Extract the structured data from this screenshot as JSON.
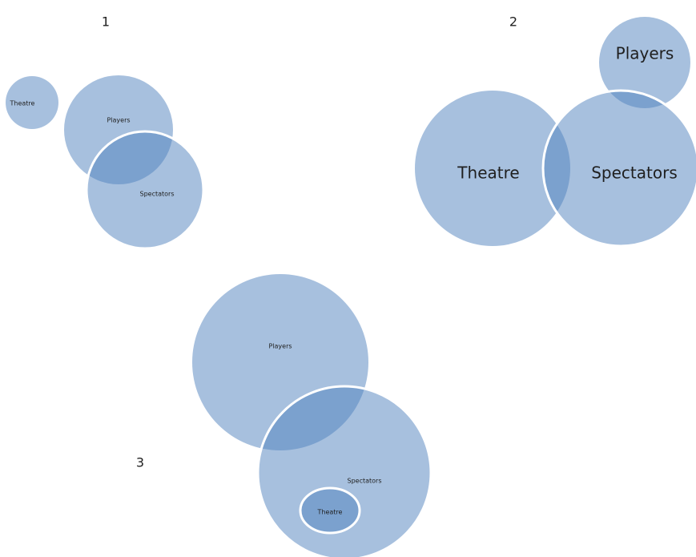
{
  "diagrams": [
    {
      "number": "1",
      "circles": [
        {
          "label": "Theatre"
        },
        {
          "label": "Players"
        },
        {
          "label": "Spectators"
        }
      ]
    },
    {
      "number": "2",
      "circles": [
        {
          "label": "Players"
        },
        {
          "label": "Theatre"
        },
        {
          "label": "Spectators"
        }
      ]
    },
    {
      "number": "3",
      "circles": [
        {
          "label": "Players"
        },
        {
          "label": "Spectators"
        },
        {
          "label": "Theatre"
        }
      ]
    }
  ]
}
